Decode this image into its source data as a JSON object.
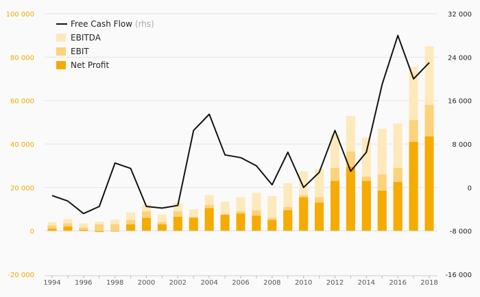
{
  "chart_data": {
    "type": "bar",
    "x": [
      1994,
      1995,
      1996,
      1997,
      1998,
      1999,
      2000,
      2001,
      2002,
      2003,
      2004,
      2005,
      2006,
      2007,
      2008,
      2009,
      2010,
      2011,
      2012,
      2013,
      2014,
      2015,
      2016,
      2017,
      2018
    ],
    "x_tick_labels": [
      "1994",
      "1996",
      "1998",
      "2000",
      "2002",
      "2004",
      "2006",
      "2008",
      "2010",
      "2012",
      "2014",
      "2016",
      "2018"
    ],
    "series": [
      {
        "name": "EBITDA",
        "kind": "bar",
        "axis": "left",
        "color": "#fde9bb",
        "values": [
          4000,
          5500,
          3500,
          4200,
          5200,
          8500,
          12000,
          7500,
          13000,
          10000,
          16500,
          13500,
          15500,
          17500,
          16000,
          22000,
          27500,
          28500,
          44500,
          53000,
          43000,
          47000,
          49500,
          75500,
          85000
        ]
      },
      {
        "name": "EBIT",
        "kind": "bar",
        "axis": "left",
        "color": "#fcd27a",
        "values": [
          2500,
          3500,
          1500,
          3000,
          3000,
          5000,
          9000,
          4000,
          9000,
          6500,
          12000,
          7500,
          9000,
          9500,
          6000,
          11000,
          16500,
          15500,
          29000,
          36500,
          25000,
          26000,
          29000,
          51000,
          58000
        ]
      },
      {
        "name": "Net Profit",
        "kind": "bar",
        "axis": "left",
        "color": "#f5ab00",
        "values": [
          1000,
          2000,
          500,
          -500,
          -300,
          3000,
          6000,
          3000,
          6500,
          6000,
          10500,
          7500,
          8000,
          7000,
          5000,
          9500,
          15500,
          13000,
          23000,
          29500,
          23000,
          18500,
          22500,
          41000,
          43500
        ]
      },
      {
        "name": "Free Cash Flow",
        "suffix": "(rhs)",
        "kind": "line",
        "axis": "right",
        "color": "#111111",
        "values": [
          -1500,
          -2500,
          -4800,
          -3500,
          4500,
          3500,
          -3500,
          -3800,
          -3300,
          10500,
          13500,
          6000,
          5500,
          4000,
          500,
          6500,
          0,
          2800,
          10500,
          3000,
          6500,
          19000,
          28000,
          20000,
          23000
        ]
      }
    ],
    "y_left": {
      "min": -20000,
      "max": 100000,
      "ticks": [
        -20000,
        0,
        20000,
        40000,
        60000,
        80000,
        100000
      ],
      "tick_labels": [
        "-20 000",
        "0",
        "20 000",
        "40 000",
        "60 000",
        "80 000",
        "100 000"
      ]
    },
    "y_right": {
      "min": -16000,
      "max": 32000,
      "ticks": [
        -16000,
        -8000,
        0,
        8000,
        16000,
        24000,
        32000
      ],
      "tick_labels": [
        "-16 000",
        "-8 000",
        "0",
        "8 000",
        "16 000",
        "24 000",
        "32 000"
      ]
    },
    "grid": "horizontal",
    "legend_placement": "top-left",
    "title": "",
    "xlabel": "",
    "ylabel": ""
  }
}
